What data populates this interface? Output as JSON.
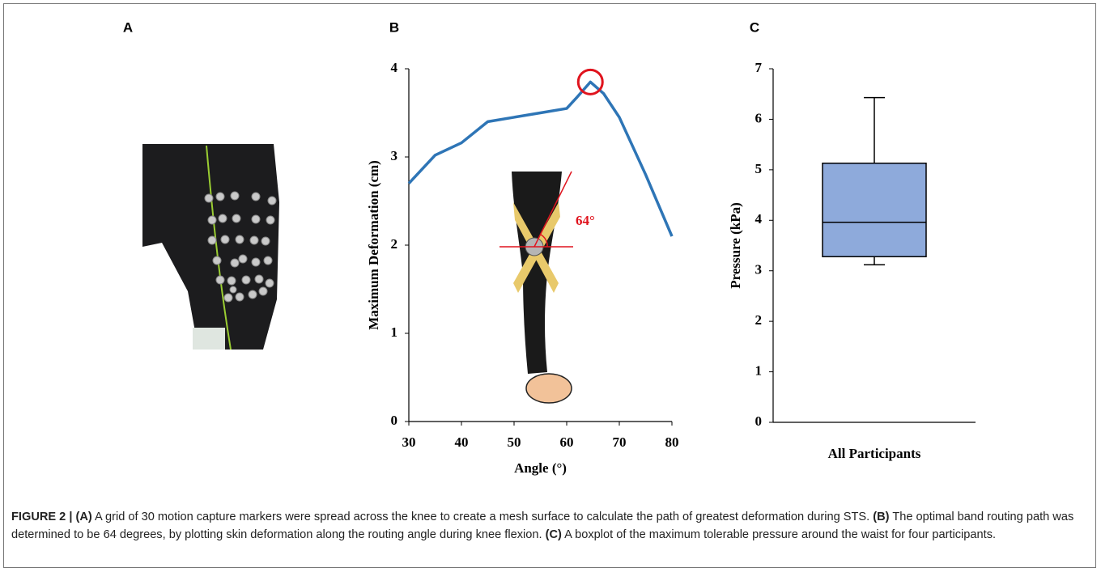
{
  "panel_labels": [
    "A",
    "B",
    "C"
  ],
  "chart_data": [
    {
      "type": "line",
      "xlabel": "Angle (°)",
      "ylabel": "Maximum Deformation (cm)",
      "annotation": "64°",
      "x": [
        30,
        35,
        40,
        45,
        50,
        55,
        60,
        62,
        64.5,
        67,
        70,
        75,
        80
      ],
      "values": [
        2.7,
        3.02,
        3.16,
        3.4,
        3.45,
        3.5,
        3.55,
        3.68,
        3.85,
        3.72,
        3.45,
        2.8,
        2.1
      ],
      "color": "#2e75b6",
      "annotation_color": "#e0141e",
      "xlim": [
        30,
        80
      ],
      "xticks": [
        30,
        40,
        50,
        60,
        70,
        80
      ],
      "ylim": [
        0,
        4
      ],
      "yticks": [
        0,
        1,
        2,
        3,
        4
      ]
    },
    {
      "type": "box",
      "ylabel": "Pressure (kPa)",
      "categories": [
        "All Participants"
      ],
      "boxes": [
        {
          "min": 3.12,
          "q1": 3.28,
          "median": 3.96,
          "q3": 5.13,
          "max": 6.43
        }
      ],
      "color": "#8eaadb",
      "ylim": [
        0,
        7
      ],
      "yticks": [
        0,
        1,
        2,
        3,
        4,
        5,
        6,
        7
      ]
    }
  ],
  "caption": [
    {
      "text": "FIGURE 2 | (A)",
      "bold": true
    },
    {
      "text": " A grid of 30 motion capture markers were spread across the knee to create a mesh surface to calculate the path of greatest deformation during STS. ",
      "bold": false
    },
    {
      "text": "(B)",
      "bold": true
    },
    {
      "text": " The optimal band routing path was determined to be 64 degrees, by plotting skin deformation along the routing angle during knee flexion. ",
      "bold": false
    },
    {
      "text": "(C)",
      "bold": true
    },
    {
      "text": " A boxplot of the maximum tolerable pressure around the waist for four participants.",
      "bold": false
    }
  ]
}
